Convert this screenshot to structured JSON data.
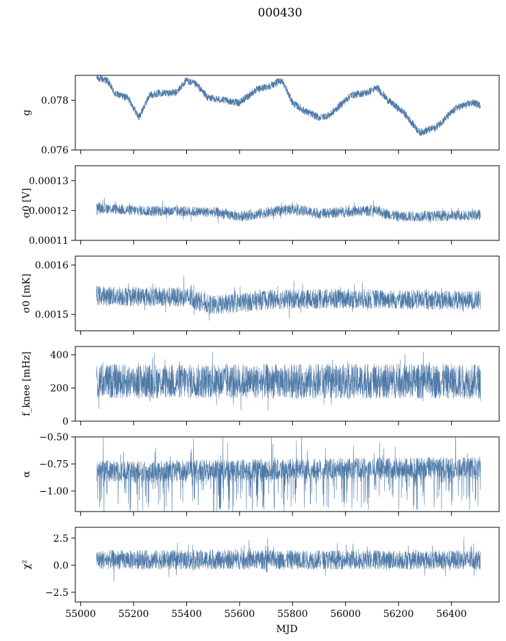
{
  "chart_data": {
    "type": "line",
    "title": "000430",
    "xlabel": "MJD",
    "xlim": [
      54980,
      56580
    ],
    "xticks": [
      55000,
      55200,
      55400,
      55600,
      55800,
      56000,
      56200,
      56400
    ],
    "x_tick_labels": [
      "55000",
      "55200",
      "55400",
      "55600",
      "55800",
      "56000",
      "56200",
      "56400"
    ],
    "data_range": [
      55060,
      56510
    ],
    "gaps": [
      55910,
      56100
    ],
    "series_color": "#4e79a7",
    "panels": [
      {
        "id": "g",
        "ylabel": "g",
        "ylim": [
          0.076,
          0.079
        ],
        "yticks": [
          0.076,
          0.078
        ],
        "ytick_labels": [
          "0.076",
          "0.078"
        ],
        "style": "trend",
        "trend": [
          [
            55060,
            0.0789
          ],
          [
            55100,
            0.0788
          ],
          [
            55130,
            0.07825
          ],
          [
            55180,
            0.0781
          ],
          [
            55220,
            0.0773
          ],
          [
            55260,
            0.0782
          ],
          [
            55300,
            0.0783
          ],
          [
            55360,
            0.0783
          ],
          [
            55400,
            0.0788
          ],
          [
            55440,
            0.0786
          ],
          [
            55480,
            0.0781
          ],
          [
            55540,
            0.078
          ],
          [
            55600,
            0.0779
          ],
          [
            55660,
            0.0784
          ],
          [
            55720,
            0.0786
          ],
          [
            55760,
            0.0788
          ],
          [
            55800,
            0.0779
          ],
          [
            55840,
            0.0776
          ],
          [
            55900,
            0.0773
          ],
          [
            55940,
            0.0774
          ],
          [
            55980,
            0.0778
          ],
          [
            56020,
            0.0782
          ],
          [
            56080,
            0.0783
          ],
          [
            56120,
            0.0785
          ],
          [
            56160,
            0.078
          ],
          [
            56220,
            0.0775
          ],
          [
            56280,
            0.0767
          ],
          [
            56340,
            0.0769
          ],
          [
            56380,
            0.0773
          ],
          [
            56420,
            0.0777
          ],
          [
            56480,
            0.0779
          ],
          [
            56510,
            0.0778
          ]
        ],
        "noise": 0.00015
      },
      {
        "id": "sigma0_v",
        "ylabel": "σ0 [V]",
        "ylim": [
          0.00011,
          0.000135
        ],
        "yticks": [
          0.00011,
          0.00012,
          0.00013
        ],
        "ytick_labels": [
          "0.00011",
          "0.00012",
          "0.00013"
        ],
        "style": "band",
        "center": [
          [
            55060,
            0.000121
          ],
          [
            55200,
            0.00012
          ],
          [
            55500,
            0.0001195
          ],
          [
            55600,
            0.000118
          ],
          [
            55800,
            0.0001205
          ],
          [
            55900,
            0.000119
          ],
          [
            56100,
            0.00012
          ],
          [
            56200,
            0.000118
          ],
          [
            56510,
            0.0001185
          ]
        ],
        "halfwidth": 1.8e-06,
        "spike": 2e-06
      },
      {
        "id": "sigma0_mk",
        "ylabel": "σ0 [mK]",
        "ylim": [
          0.001467,
          0.001618
        ],
        "yticks": [
          0.0015,
          0.0016
        ],
        "ytick_labels": [
          "0.0015",
          "0.0016"
        ],
        "style": "band",
        "center": [
          [
            55060,
            0.001538
          ],
          [
            55400,
            0.001535
          ],
          [
            55500,
            0.001518
          ],
          [
            55700,
            0.00153
          ],
          [
            56000,
            0.001532
          ],
          [
            56510,
            0.001528
          ]
        ],
        "halfwidth": 2e-05,
        "spike": 2.5e-05
      },
      {
        "id": "fknee",
        "ylabel": "f_knee [mHz]",
        "ylim": [
          0,
          450
        ],
        "yticks": [
          0,
          200,
          400
        ],
        "ytick_labels": [
          "0",
          "200",
          "400"
        ],
        "style": "band",
        "center": [
          [
            55060,
            240
          ],
          [
            56510,
            240
          ]
        ],
        "halfwidth": 105,
        "spike": 90
      },
      {
        "id": "alpha",
        "ylabel": "α",
        "ylim": [
          -1.19,
          -0.5
        ],
        "yticks": [
          -1.0,
          -0.75,
          -0.5
        ],
        "ytick_labels": [
          "−1.00",
          "−0.75",
          "−0.50"
        ],
        "style": "alpha",
        "center": [
          [
            55060,
            -0.82
          ],
          [
            56510,
            -0.78
          ]
        ],
        "halfwidth": 0.1,
        "spike": 0.3
      },
      {
        "id": "chi2",
        "ylabel": "χ²",
        "ylim": [
          -3.4,
          3.5
        ],
        "yticks": [
          -2.5,
          0.0,
          2.5
        ],
        "ytick_labels": [
          "−2.5",
          "0.0",
          "2.5"
        ],
        "style": "band",
        "center": [
          [
            55060,
            0.5
          ],
          [
            56510,
            0.5
          ]
        ],
        "halfwidth": 0.9,
        "spike": 1.3
      }
    ]
  }
}
